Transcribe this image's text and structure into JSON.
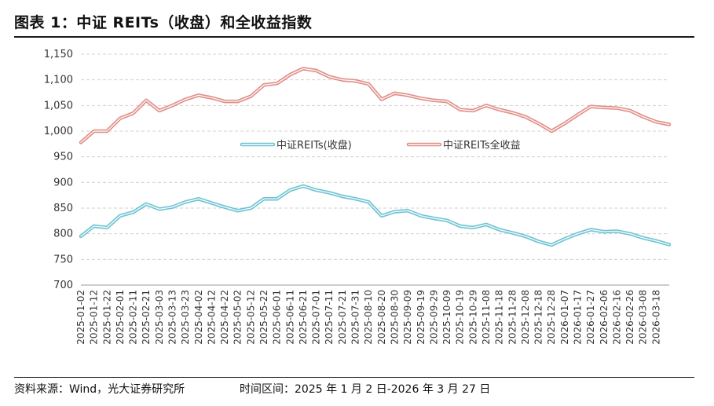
{
  "header": {
    "title": "图表 1：中证 REITs（收盘）和全收益指数"
  },
  "footer": {
    "source": "资料来源：Wind，光大证券研究所",
    "period": "时间区间：2025 年 1 月 2 日-2026 年 3 月 27 日"
  },
  "colors": {
    "close": "#6cc3d2",
    "total": "#e08d86",
    "grid": "#d0d0d0"
  },
  "chart_data": {
    "type": "line",
    "title": "",
    "xlabel": "",
    "ylabel": "",
    "ylim": [
      700,
      1150
    ],
    "yticks": [
      700,
      750,
      800,
      850,
      900,
      950,
      1000,
      1050,
      1100,
      1150
    ],
    "ytick_labels": [
      "700",
      "750",
      "800",
      "850",
      "900",
      "950",
      "1,000",
      "1,050",
      "1,100",
      "1,150"
    ],
    "grid": true,
    "legend_position": "center",
    "x": [
      "2025-01-02",
      "2025-01-12",
      "2025-01-22",
      "2025-02-01",
      "2025-02-11",
      "2025-02-21",
      "2025-03-03",
      "2025-03-13",
      "2025-03-23",
      "2025-04-02",
      "2025-04-12",
      "2025-04-22",
      "2025-05-02",
      "2025-05-12",
      "2025-05-22",
      "2025-06-01",
      "2025-06-11",
      "2025-06-21",
      "2025-07-01",
      "2025-07-11",
      "2025-07-21",
      "2025-07-31",
      "2025-08-10",
      "2025-08-20",
      "2025-08-30",
      "2025-09-09",
      "2025-09-19",
      "2025-09-29",
      "2025-10-09",
      "2025-10-19",
      "2025-10-29",
      "2025-11-08",
      "2025-11-18",
      "2025-11-28",
      "2025-12-08",
      "2025-12-18",
      "2025-12-28",
      "2026-01-07",
      "2026-01-17",
      "2026-01-27",
      "2026-02-06",
      "2026-02-16",
      "2026-02-26",
      "2026-03-08",
      "2026-03-18",
      "2026-03-27"
    ],
    "x_tick_labels": [
      "2025-01-02",
      "2025-01-12",
      "2025-01-22",
      "2025-02-01",
      "2025-02-11",
      "2025-02-21",
      "2025-03-03",
      "2025-03-13",
      "2025-03-23",
      "2025-04-02",
      "2025-04-12",
      "2025-04-22",
      "2025-05-02",
      "2025-05-12",
      "2025-05-22",
      "2025-06-01",
      "2025-06-11",
      "2025-06-21",
      "2025-07-01",
      "2025-07-11",
      "2025-07-21",
      "2025-07-31",
      "2025-08-10",
      "2025-08-20",
      "2025-08-30",
      "2025-09-09",
      "2025-09-19",
      "2025-09-29",
      "2025-10-09",
      "2025-10-19",
      "2025-10-29",
      "2025-11-08",
      "2025-11-18",
      "2025-11-28",
      "2025-12-08",
      "2025-12-18",
      "2025-12-28",
      "2026-01-07",
      "2026-01-17",
      "2026-01-27",
      "2026-02-06",
      "2026-02-16",
      "2026-02-26",
      "2026-03-08",
      "2026-03-18"
    ],
    "series": [
      {
        "name": "中证REITs(收盘)",
        "values": [
          795,
          815,
          812,
          835,
          842,
          858,
          848,
          852,
          862,
          868,
          860,
          852,
          845,
          850,
          868,
          868,
          885,
          893,
          885,
          880,
          873,
          868,
          862,
          835,
          843,
          845,
          835,
          830,
          826,
          815,
          812,
          818,
          808,
          802,
          795,
          785,
          778,
          790,
          800,
          808,
          804,
          805,
          800,
          792,
          786,
          779
        ]
      },
      {
        "name": "中证REITs全收益",
        "values": [
          978,
          1000,
          1000,
          1025,
          1035,
          1060,
          1040,
          1050,
          1062,
          1070,
          1065,
          1058,
          1058,
          1068,
          1090,
          1093,
          1110,
          1122,
          1118,
          1106,
          1100,
          1098,
          1092,
          1062,
          1074,
          1070,
          1064,
          1060,
          1058,
          1042,
          1040,
          1050,
          1042,
          1036,
          1028,
          1015,
          1000,
          1015,
          1032,
          1048,
          1046,
          1045,
          1040,
          1028,
          1018,
          1013
        ]
      }
    ]
  }
}
